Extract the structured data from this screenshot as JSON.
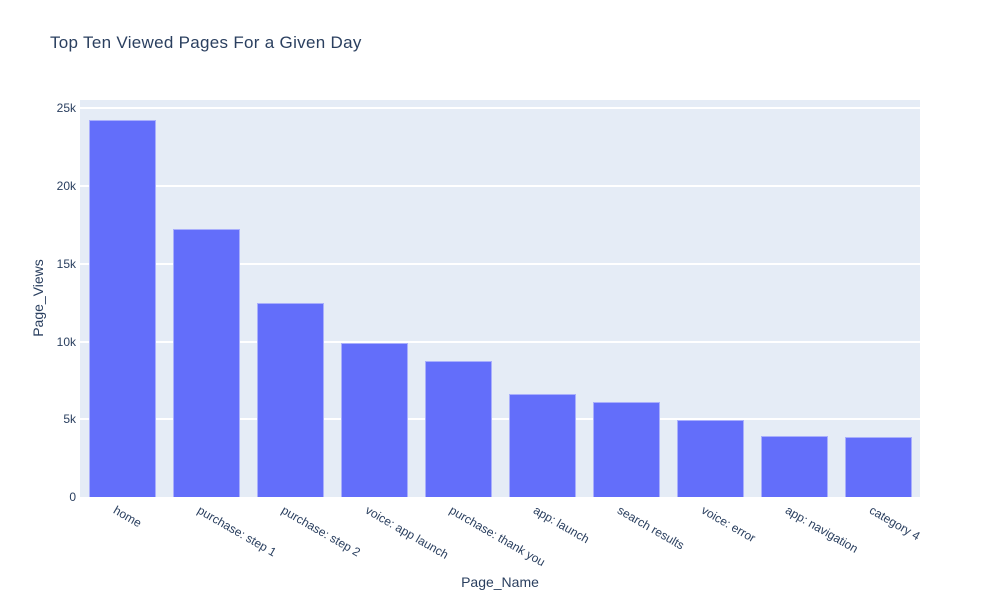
{
  "style": {
    "bar_color": "#636efa",
    "bar_edge_color": "rgba(255,255,255,0.45)",
    "plot_bg_color": "#e5ecf6",
    "grid_color": "#ffffff",
    "text_color": "#2a3f5f",
    "page_bg_color": "#ffffff"
  },
  "chart_data": {
    "type": "bar",
    "title": "Top Ten Viewed Pages For a Given Day",
    "xlabel": "Page_Name",
    "ylabel": "Page_Views",
    "categories": [
      "home",
      "purchase: step 1",
      "purchase: step 2",
      "voice: app launch",
      "purchase: thank you",
      "app: launch",
      "search results",
      "voice: error",
      "app: navigation",
      "category 4"
    ],
    "values": [
      24250,
      17250,
      12500,
      9900,
      8750,
      6600,
      6100,
      4950,
      3950,
      3850
    ],
    "ylim": [
      0,
      25000
    ],
    "yticks": [
      {
        "value": 0,
        "label": "0"
      },
      {
        "value": 5000,
        "label": "5k"
      },
      {
        "value": 10000,
        "label": "10k"
      },
      {
        "value": 15000,
        "label": "15k"
      },
      {
        "value": 20000,
        "label": "20k"
      },
      {
        "value": 25000,
        "label": "25k"
      }
    ],
    "grid": "horizontal",
    "legend": "none",
    "xtick_angle_deg": 30
  }
}
